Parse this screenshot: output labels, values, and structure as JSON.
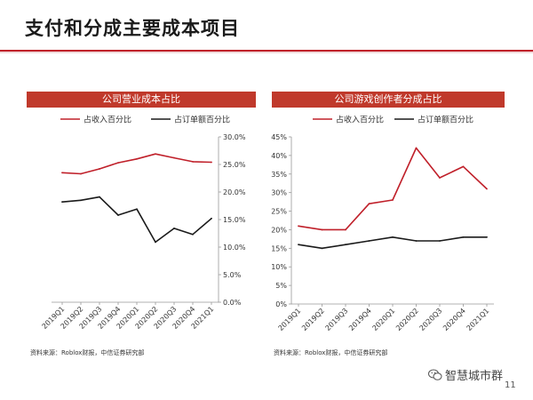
{
  "title": "支付和分成主要成本项目",
  "footer": {
    "watermark": "智慧城市群",
    "page_number": "11"
  },
  "colors": {
    "accent": "#c0392b",
    "series_red": "#c0202a",
    "series_black": "#1a1a1a"
  },
  "chart_data": [
    {
      "type": "line",
      "title": "公司营业成本占比",
      "source": "资料来源：Roblox财报，中信证券研究部",
      "x": [
        "2019Q1",
        "2019Q2",
        "2019Q3",
        "2019Q4",
        "2020Q1",
        "2020Q2",
        "2020Q3",
        "2020Q4",
        "2021Q1"
      ],
      "series": [
        {
          "name": "占收入百分比",
          "values": [
            23.5,
            23.3,
            24.2,
            25.3,
            26.0,
            26.9,
            26.2,
            25.5,
            25.4
          ]
        },
        {
          "name": "占订单额百分比",
          "values": [
            18.2,
            18.5,
            19.1,
            15.8,
            16.9,
            10.9,
            13.4,
            12.3,
            15.2
          ]
        }
      ],
      "ylim": [
        0,
        30
      ],
      "yticks": [
        "0.0%",
        "5.0%",
        "10.0%",
        "15.0%",
        "20.0%",
        "25.0%",
        "30.0%"
      ],
      "y_axis_position": "right",
      "grid": false,
      "legend": "top"
    },
    {
      "type": "line",
      "title": "公司游戏创作者分成占比",
      "source": "资料来源：Roblox财报，中信证券研究部",
      "x": [
        "2019Q1",
        "2019Q2",
        "2019Q3",
        "2019Q4",
        "2020Q1",
        "2020Q2",
        "2020Q3",
        "2020Q4",
        "2021Q1"
      ],
      "series": [
        {
          "name": "占收入百分比",
          "values": [
            21,
            20,
            20,
            27,
            28,
            42,
            34,
            37,
            31
          ]
        },
        {
          "name": "占订单额百分比",
          "values": [
            16,
            15,
            16,
            17,
            18,
            17,
            17,
            18,
            18
          ]
        }
      ],
      "ylim": [
        0,
        45
      ],
      "yticks": [
        "0%",
        "5%",
        "10%",
        "15%",
        "20%",
        "25%",
        "30%",
        "35%",
        "40%",
        "45%"
      ],
      "y_axis_position": "left",
      "grid": false,
      "legend": "top"
    }
  ]
}
